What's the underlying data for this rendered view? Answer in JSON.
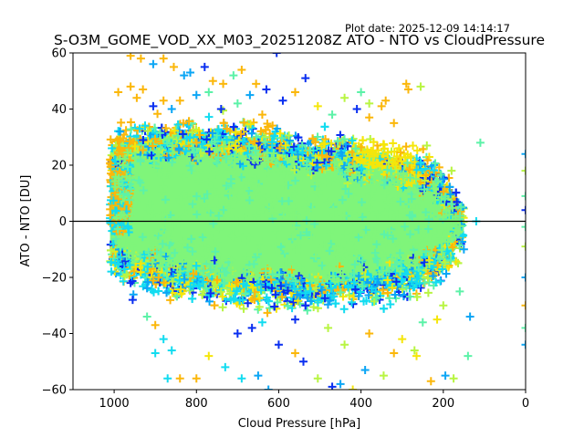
{
  "figure": {
    "plot_date": "Plot date: 2025-12-09 14:14:17",
    "title": "S-O3M_GOME_VOD_XX_M03_20251208Z ATO - NTO vs CloudPressure"
  },
  "chart_data": {
    "type": "scatter",
    "title": "S-O3M_GOME_VOD_XX_M03_20251208Z ATO - NTO vs CloudPressure",
    "subtitle": "Plot date: 2025-12-09 14:14:17",
    "xlabel": "Cloud Pressure [hPa]",
    "ylabel": "ATO - NTO [DU]",
    "xlim": [
      1100,
      0
    ],
    "ylim": [
      -60,
      60
    ],
    "x_inverted": true,
    "xticks": [
      1000,
      800,
      600,
      400,
      200,
      0
    ],
    "xtick_labels": [
      "1000",
      "800",
      "600",
      "400",
      "200",
      "0"
    ],
    "yticks": [
      60,
      40,
      20,
      0,
      -20,
      -40,
      -60
    ],
    "ytick_labels": [
      "60",
      "40",
      "20",
      "0",
      "−20",
      "−40",
      "−60"
    ],
    "reference_line": {
      "y": 0,
      "color": "#000000"
    },
    "marker": "+",
    "grid": false,
    "legend": "none",
    "color_classes": [
      {
        "name": "dense-core",
        "color": "#7ff57a"
      },
      {
        "name": "aqua-green",
        "color": "#5cf2a8"
      },
      {
        "name": "cyan",
        "color": "#12dcf0"
      },
      {
        "name": "sky-blue",
        "color": "#0ba6f5"
      },
      {
        "name": "blue",
        "color": "#0a2ff0"
      },
      {
        "name": "lime",
        "color": "#b8f542"
      },
      {
        "name": "yellow",
        "color": "#f5e60a"
      },
      {
        "name": "orange",
        "color": "#fbb70b"
      }
    ],
    "density_envelope": {
      "description": "Dense cloud of points spanning ~1010 to ~150 hPa; core roughly -15..+25 DU, widening at mid pressures",
      "pressure": [
        1010,
        990,
        950,
        900,
        850,
        800,
        750,
        700,
        650,
        600,
        550,
        500,
        450,
        400,
        350,
        300,
        260,
        230,
        200,
        180,
        160,
        150
      ],
      "upper_core": [
        25,
        28,
        30,
        30,
        31,
        31,
        31,
        30,
        30,
        28,
        27,
        26,
        25,
        24,
        24,
        22,
        20,
        18,
        14,
        10,
        5,
        2
      ],
      "lower_core": [
        -12,
        -16,
        -18,
        -20,
        -22,
        -23,
        -24,
        -25,
        -25,
        -25,
        -26,
        -26,
        -25,
        -24,
        -23,
        -22,
        -20,
        -18,
        -15,
        -12,
        -8,
        -5
      ]
    },
    "outliers": [
      {
        "x": 960,
        "y": 59,
        "c": "orange"
      },
      {
        "x": 935,
        "y": 58,
        "c": "orange"
      },
      {
        "x": 905,
        "y": 56,
        "c": "sky-blue"
      },
      {
        "x": 880,
        "y": 58,
        "c": "orange"
      },
      {
        "x": 855,
        "y": 55,
        "c": "orange"
      },
      {
        "x": 830,
        "y": 52,
        "c": "sky-blue"
      },
      {
        "x": 815,
        "y": 53,
        "c": "sky-blue"
      },
      {
        "x": 780,
        "y": 55,
        "c": "blue"
      },
      {
        "x": 760,
        "y": 50,
        "c": "orange"
      },
      {
        "x": 735,
        "y": 49,
        "c": "orange"
      },
      {
        "x": 710,
        "y": 52,
        "c": "aqua-green"
      },
      {
        "x": 690,
        "y": 54,
        "c": "orange"
      },
      {
        "x": 655,
        "y": 49,
        "c": "orange"
      },
      {
        "x": 630,
        "y": 47,
        "c": "blue"
      },
      {
        "x": 605,
        "y": 60,
        "c": "blue"
      },
      {
        "x": 960,
        "y": 48,
        "c": "orange"
      },
      {
        "x": 990,
        "y": 46,
        "c": "orange"
      },
      {
        "x": 945,
        "y": 44,
        "c": "orange"
      },
      {
        "x": 930,
        "y": 47,
        "c": "orange"
      },
      {
        "x": 905,
        "y": 41,
        "c": "blue"
      },
      {
        "x": 880,
        "y": 43,
        "c": "orange"
      },
      {
        "x": 860,
        "y": 40,
        "c": "sky-blue"
      },
      {
        "x": 840,
        "y": 43,
        "c": "orange"
      },
      {
        "x": 800,
        "y": 45,
        "c": "sky-blue"
      },
      {
        "x": 770,
        "y": 46,
        "c": "aqua-green"
      },
      {
        "x": 740,
        "y": 40,
        "c": "blue"
      },
      {
        "x": 700,
        "y": 42,
        "c": "aqua-green"
      },
      {
        "x": 670,
        "y": 45,
        "c": "sky-blue"
      },
      {
        "x": 640,
        "y": 38,
        "c": "orange"
      },
      {
        "x": 590,
        "y": 43,
        "c": "blue"
      },
      {
        "x": 560,
        "y": 46,
        "c": "orange"
      },
      {
        "x": 535,
        "y": 51,
        "c": "blue"
      },
      {
        "x": 505,
        "y": 41,
        "c": "yellow"
      },
      {
        "x": 470,
        "y": 38,
        "c": "aqua-green"
      },
      {
        "x": 440,
        "y": 44,
        "c": "lime"
      },
      {
        "x": 400,
        "y": 46,
        "c": "aqua-green"
      },
      {
        "x": 380,
        "y": 42,
        "c": "lime"
      },
      {
        "x": 350,
        "y": 41,
        "c": "orange"
      },
      {
        "x": 340,
        "y": 43,
        "c": "orange"
      },
      {
        "x": 290,
        "y": 49,
        "c": "orange"
      },
      {
        "x": 285,
        "y": 47,
        "c": "orange"
      },
      {
        "x": 255,
        "y": 48,
        "c": "lime"
      },
      {
        "x": 380,
        "y": 37,
        "c": "orange"
      },
      {
        "x": 410,
        "y": 40,
        "c": "blue"
      },
      {
        "x": 320,
        "y": 35,
        "c": "orange"
      },
      {
        "x": 110,
        "y": 28,
        "c": "aqua-green"
      },
      {
        "x": 200,
        "y": 15,
        "c": "sky-blue"
      },
      {
        "x": 180,
        "y": 18,
        "c": "lime"
      },
      {
        "x": 240,
        "y": 27,
        "c": "lime"
      },
      {
        "x": 120,
        "y": 0,
        "c": "cyan"
      },
      {
        "x": 150,
        "y": -10,
        "c": "sky-blue"
      },
      {
        "x": 135,
        "y": -34,
        "c": "sky-blue"
      },
      {
        "x": 160,
        "y": -25,
        "c": "aqua-green"
      },
      {
        "x": 200,
        "y": -30,
        "c": "lime"
      },
      {
        "x": 215,
        "y": -35,
        "c": "yellow"
      },
      {
        "x": 250,
        "y": -36,
        "c": "aqua-green"
      },
      {
        "x": 270,
        "y": -46,
        "c": "lime"
      },
      {
        "x": 265,
        "y": -48,
        "c": "yellow"
      },
      {
        "x": 140,
        "y": -48,
        "c": "aqua-green"
      },
      {
        "x": 195,
        "y": -55,
        "c": "sky-blue"
      },
      {
        "x": 175,
        "y": -56,
        "c": "lime"
      },
      {
        "x": 230,
        "y": -57,
        "c": "orange"
      },
      {
        "x": 300,
        "y": -42,
        "c": "yellow"
      },
      {
        "x": 320,
        "y": -47,
        "c": "orange"
      },
      {
        "x": 345,
        "y": -55,
        "c": "lime"
      },
      {
        "x": 390,
        "y": -53,
        "c": "sky-blue"
      },
      {
        "x": 420,
        "y": -60,
        "c": "yellow"
      },
      {
        "x": 450,
        "y": -58,
        "c": "sky-blue"
      },
      {
        "x": 470,
        "y": -59,
        "c": "blue"
      },
      {
        "x": 505,
        "y": -56,
        "c": "lime"
      },
      {
        "x": 540,
        "y": -50,
        "c": "blue"
      },
      {
        "x": 560,
        "y": -47,
        "c": "orange"
      },
      {
        "x": 600,
        "y": -44,
        "c": "blue"
      },
      {
        "x": 625,
        "y": -60,
        "c": "sky-blue"
      },
      {
        "x": 650,
        "y": -55,
        "c": "sky-blue"
      },
      {
        "x": 690,
        "y": -56,
        "c": "cyan"
      },
      {
        "x": 730,
        "y": -52,
        "c": "cyan"
      },
      {
        "x": 770,
        "y": -48,
        "c": "yellow"
      },
      {
        "x": 800,
        "y": -56,
        "c": "orange"
      },
      {
        "x": 840,
        "y": -56,
        "c": "orange"
      },
      {
        "x": 870,
        "y": -56,
        "c": "cyan"
      },
      {
        "x": 860,
        "y": -46,
        "c": "cyan"
      },
      {
        "x": 880,
        "y": -42,
        "c": "cyan"
      },
      {
        "x": 900,
        "y": -47,
        "c": "cyan"
      },
      {
        "x": 920,
        "y": -34,
        "c": "aqua-green"
      },
      {
        "x": 955,
        "y": -28,
        "c": "blue"
      },
      {
        "x": 960,
        "y": -22,
        "c": "blue"
      },
      {
        "x": 900,
        "y": -37,
        "c": "orange"
      },
      {
        "x": 700,
        "y": -40,
        "c": "blue"
      },
      {
        "x": 665,
        "y": -38,
        "c": "blue"
      },
      {
        "x": 640,
        "y": -36,
        "c": "cyan"
      },
      {
        "x": 560,
        "y": -35,
        "c": "blue"
      },
      {
        "x": 480,
        "y": -38,
        "c": "lime"
      },
      {
        "x": 440,
        "y": -44,
        "c": "lime"
      },
      {
        "x": 380,
        "y": -40,
        "c": "orange"
      },
      {
        "x": 0,
        "y": 24,
        "c": "sky-blue"
      },
      {
        "x": 0,
        "y": 18,
        "c": "lime"
      },
      {
        "x": 0,
        "y": 4,
        "c": "blue"
      },
      {
        "x": 0,
        "y": -2,
        "c": "aqua-green"
      },
      {
        "x": 0,
        "y": -9,
        "c": "lime"
      },
      {
        "x": 0,
        "y": -20,
        "c": "sky-blue"
      },
      {
        "x": 0,
        "y": -30,
        "c": "orange"
      },
      {
        "x": 0,
        "y": -38,
        "c": "aqua-green"
      },
      {
        "x": 0,
        "y": -44,
        "c": "sky-blue"
      },
      {
        "x": 0,
        "y": 9,
        "c": "aqua-green"
      }
    ]
  }
}
